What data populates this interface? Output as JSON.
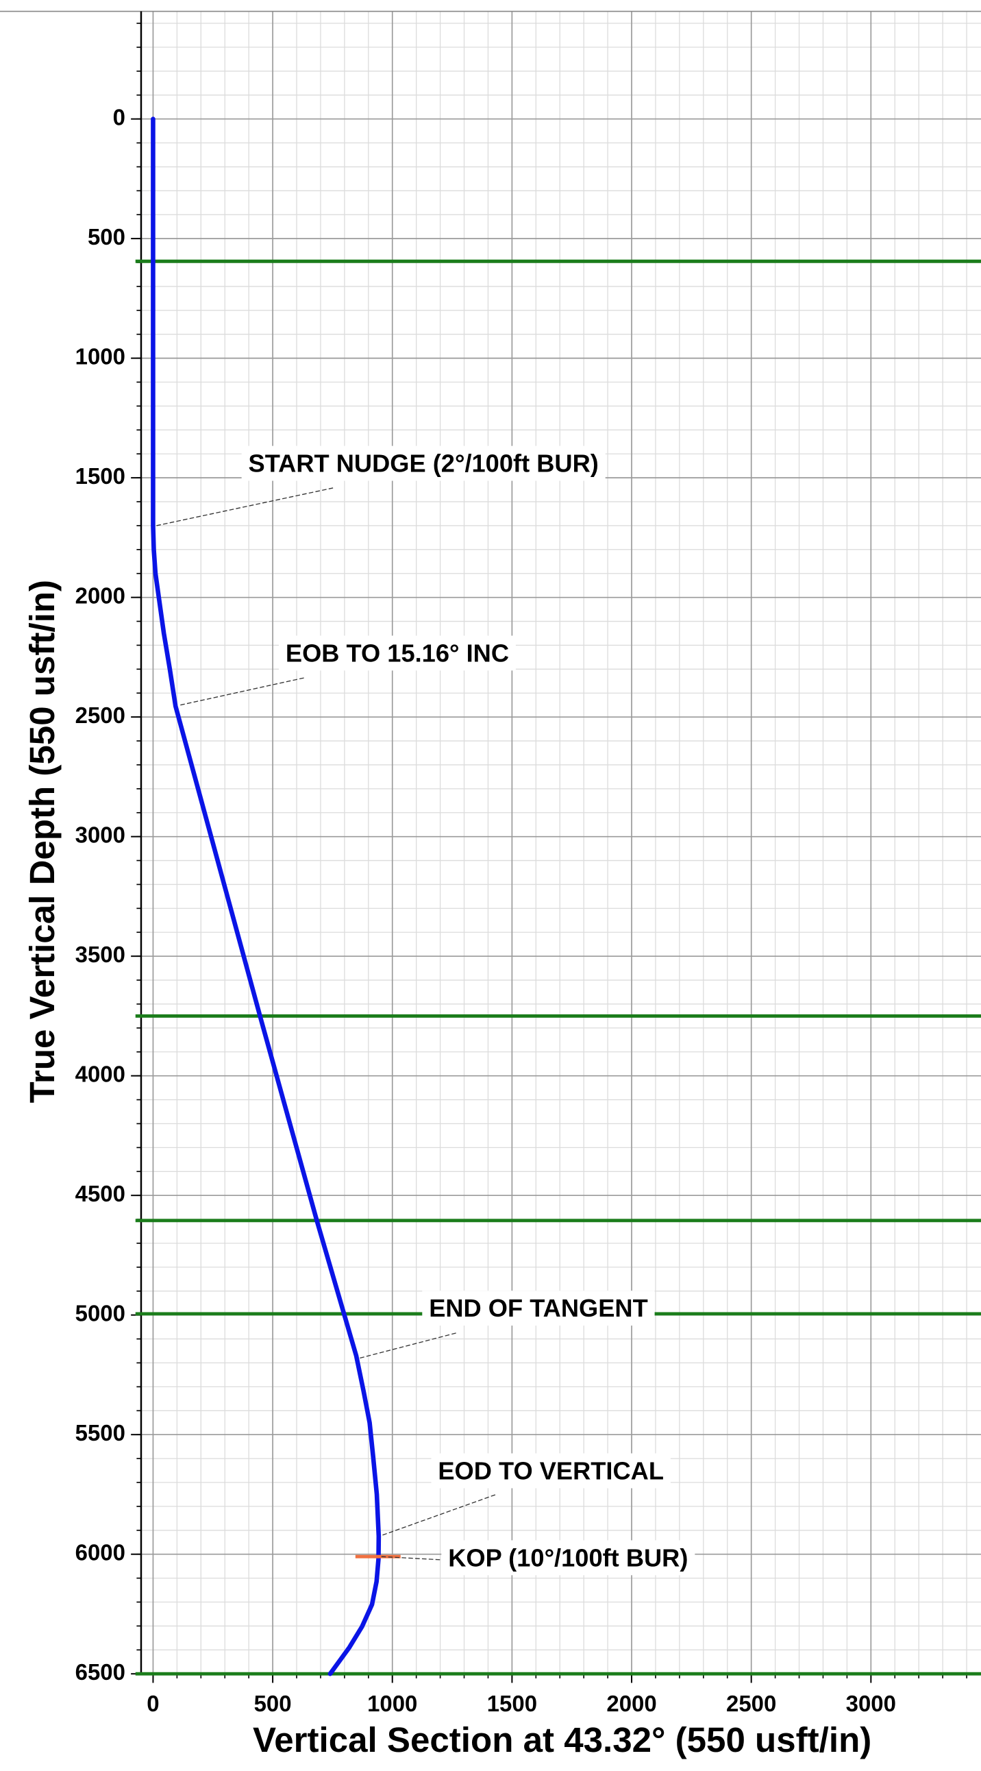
{
  "chart_data": {
    "type": "line",
    "x_label": "Vertical Section at 43.32° (550 usft/in)",
    "y_label": "True Vertical Depth (550 usft/in)",
    "xlim": [
      -50,
      3460
    ],
    "ylim": [
      -450,
      6500
    ],
    "y_inverted": true,
    "xticks": [
      0,
      500,
      1000,
      1500,
      2000,
      2500,
      3000
    ],
    "yticks": [
      0,
      500,
      1000,
      1500,
      2000,
      2500,
      3000,
      3500,
      4000,
      4500,
      5000,
      5500,
      6000,
      6500
    ],
    "grid": true,
    "minor_step": 100,
    "series": [
      {
        "color": "#0a14e6",
        "x": [
          0,
          0,
          0,
          3,
          10,
          24,
          45,
          70,
          94,
          448,
          684,
          849,
          880,
          905,
          920,
          935,
          943,
          942,
          934,
          915,
          873,
          820,
          740
        ],
        "y": [
          0,
          1000,
          1700,
          1800,
          1900,
          2000,
          2150,
          2300,
          2455,
          3754,
          4604,
          5170,
          5320,
          5450,
          5595,
          5750,
          5925,
          6020,
          6114,
          6210,
          6303,
          6390,
          6500
        ]
      }
    ],
    "formation_tops": {
      "color": "#1b7d1b",
      "values": [
        595,
        3750,
        4605,
        4995,
        6500
      ]
    },
    "annotations": [
      {
        "text": "START NUDGE (2°/100ft BUR)",
        "x": 0,
        "y": 1700
      },
      {
        "text": "EOB TO 15.16° INC",
        "x": 100,
        "y": 2450
      },
      {
        "text": "END OF TANGENT",
        "x": 850,
        "y": 5180
      },
      {
        "text": "EOD TO VERTICAL",
        "x": 945,
        "y": 5920
      },
      {
        "text": "KOP (10°/100ft BUR)",
        "x": 940,
        "y": 6010
      }
    ],
    "marker_color": "#f07040"
  }
}
